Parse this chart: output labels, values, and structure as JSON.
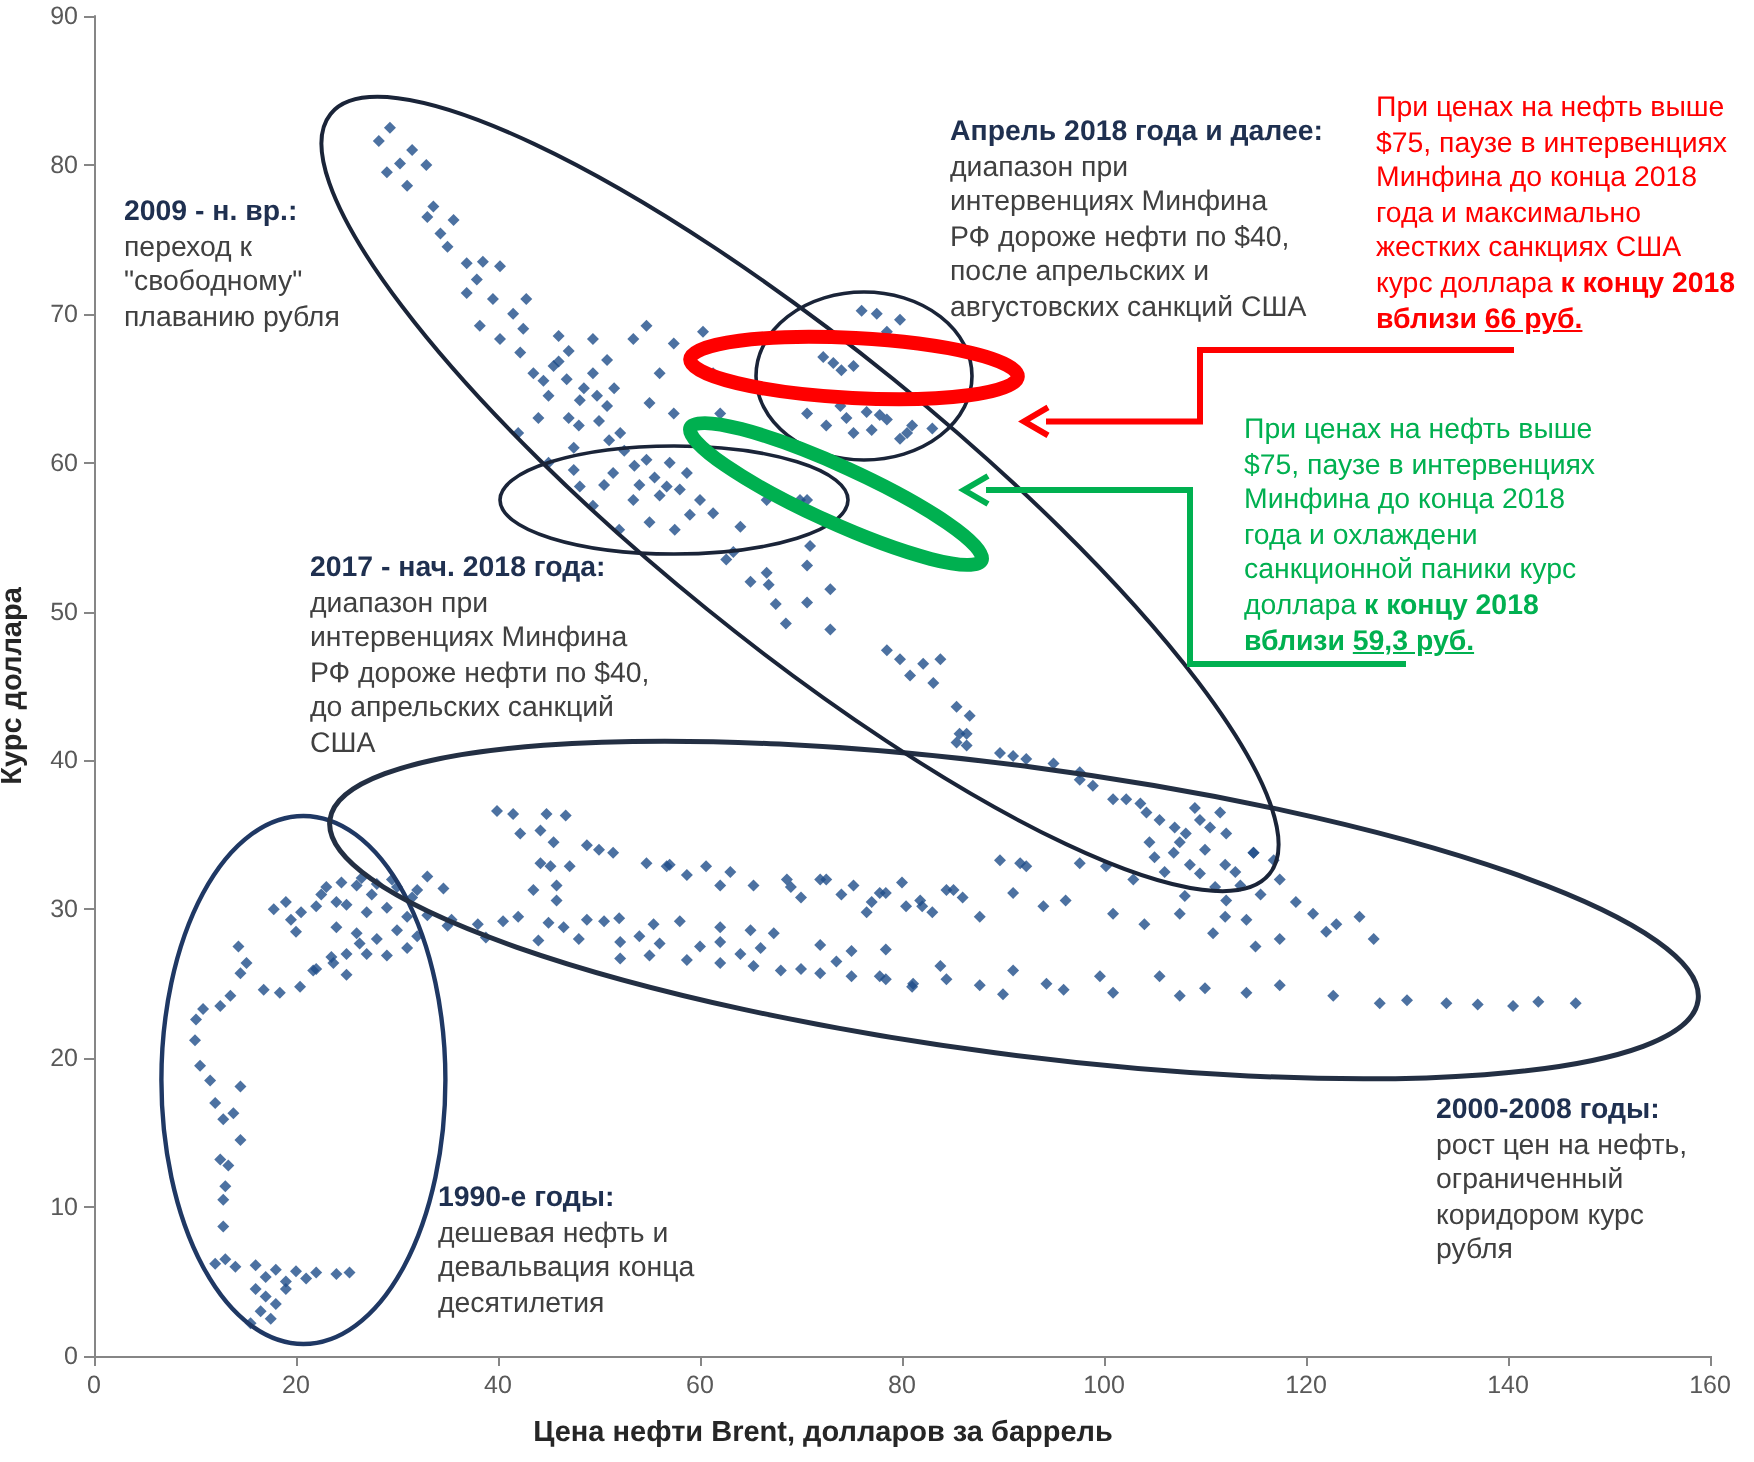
{
  "chart_data": {
    "type": "scatter",
    "xlabel": "Цена нефти Brent, долларов за баррель",
    "ylabel": "Курс доллара",
    "color": "#1f4e89",
    "marker": "diamond",
    "xlim": [
      0,
      160
    ],
    "xticks": [
      0,
      20,
      40,
      60,
      80,
      100,
      120,
      140,
      160
    ],
    "ylim": [
      0,
      90
    ],
    "yticks": [
      0,
      10,
      20,
      30,
      40,
      50,
      60,
      70,
      80,
      90
    ],
    "x": [
      12,
      14,
      16,
      18,
      20,
      22,
      24,
      25.3,
      13,
      17,
      19,
      21,
      16,
      17,
      18,
      16.5,
      17.5,
      15.5,
      19,
      12.8,
      12.8,
      13,
      13.3,
      12.5,
      12.8,
      13.8,
      14.5,
      11.5,
      10.5,
      10,
      10.1,
      10.8,
      12.5,
      13.5,
      14.5,
      15.1,
      16.8,
      18.4,
      20.4,
      21.7,
      23.7,
      25,
      26.3,
      14.3,
      14.5,
      12,
      17.8,
      19,
      20.5,
      22,
      23,
      24.5,
      26,
      28,
      30,
      32,
      34.6,
      25,
      27,
      29,
      31,
      33,
      24,
      26,
      28,
      30,
      32,
      35,
      22,
      23.5,
      25,
      27,
      29,
      31,
      22.5,
      26.5,
      33,
      20,
      39.9,
      41.5,
      44.8,
      46.7,
      44.2,
      42.2,
      45.5,
      45.2,
      44.2,
      45.8,
      43.5,
      45.8,
      47.1,
      48.8,
      51.4,
      54.7,
      56.7,
      58.7,
      60.6,
      62,
      65.3,
      68.6,
      72.5,
      75.2,
      78.4,
      81.8,
      85.1,
      70,
      74,
      77,
      80,
      83,
      35.4,
      38,
      42,
      45,
      48.8,
      52,
      55.4,
      58,
      62,
      65,
      67.3,
      38.8,
      44,
      48,
      52.1,
      56,
      62,
      66,
      71.9,
      75,
      78.4,
      52.1,
      55,
      58.7,
      62,
      65.3,
      68,
      71.9,
      75,
      78.4,
      81.1,
      84.4,
      85.7,
      86.4,
      91,
      95,
      97.6,
      98.9,
      100.9,
      103.6,
      108.1,
      106.9,
      109.5,
      111.5,
      105.5,
      113.5,
      114.8,
      116.8,
      117.4,
      107,
      110,
      112,
      104.5,
      109,
      111,
      106,
      100.2,
      102.9,
      112.1,
      108,
      107.5,
      114.1,
      120.7,
      125.3,
      126.7,
      117.4,
      110.8,
      122,
      104,
      77.8,
      84.4,
      91,
      96.2,
      100.9,
      89.7,
      92.3,
      97.6,
      80.4,
      87.7,
      94,
      77.8,
      83.8,
      87.7,
      94.3,
      100.9,
      105.5,
      107.5,
      114.1,
      117.4,
      122.7,
      127.3,
      133.9,
      140.5,
      146.7,
      99.6,
      91,
      81,
      90,
      96,
      110,
      130,
      137,
      143,
      70.6,
      70.9,
      70.6,
      72.9,
      72.9,
      78.5,
      79.8,
      82.1,
      83.8,
      80.8,
      83.1,
      85.4,
      86.7,
      86.4,
      85.4,
      89.7,
      92.3,
      97.6,
      102.2,
      104.2,
      109.5,
      112.1,
      114.8,
      71.9,
      91.7,
      29.3,
      28.2,
      30.3,
      29,
      31,
      32.9,
      33.6,
      34.3,
      35.6,
      36.9,
      37.9,
      36.9,
      40.2,
      39.5,
      42.8,
      38.2,
      40.2,
      42.2,
      46.8,
      49.4,
      48.1,
      45.5,
      50.8,
      49.4,
      50.8,
      43.5,
      47,
      45,
      48,
      51.5,
      44,
      47.5,
      46,
      52.1,
      54.7,
      51.4,
      56.7,
      53.4,
      48.1,
      49.4,
      58.7,
      60,
      61.3,
      64,
      66.6,
      69.9,
      63.3,
      66.6,
      70.6,
      55,
      57.5,
      57,
      62.6,
      65,
      52,
      45,
      42,
      53.4,
      54.7,
      56,
      57.4,
      60.3,
      61.3,
      62,
      57.4,
      55,
      77.5,
      79.8,
      78.5,
      72.2,
      73.2,
      75.2,
      73.9,
      76.5,
      78.5,
      79.8,
      72.5,
      75.2,
      70.6,
      81,
      83,
      77,
      47,
      48.5,
      46,
      49.8,
      50,
      51,
      52.5,
      53.5,
      55.5,
      56,
      58,
      59,
      50.5,
      54,
      47.5,
      44.5,
      42.5,
      41.5,
      38.5,
      35,
      33,
      31.5,
      67.5,
      68.5,
      66.8,
      74.5,
      77.8,
      80.5,
      76,
      74,
      40.5,
      46.5,
      50.5,
      54,
      60,
      64,
      70,
      73.5,
      82,
      86,
      76.5,
      69,
      63,
      57,
      50,
      27.5,
      29.5,
      31.5,
      24,
      19.5,
      107.5,
      110.5,
      108.5,
      105,
      113,
      115.5,
      119,
      123,
      115,
      112
    ],
    "values": [
      6.2,
      6.0,
      6.1,
      5.8,
      5.7,
      5.6,
      5.5,
      5.6,
      6.5,
      5.3,
      5.0,
      5.2,
      4.5,
      4.0,
      3.5,
      3.0,
      2.5,
      2.2,
      4.5,
      8.7,
      10.5,
      11.4,
      12.8,
      13.2,
      15.9,
      16.3,
      18.1,
      18.5,
      19.5,
      21.2,
      22.6,
      23.3,
      23.5,
      24.2,
      25.7,
      26.4,
      24.6,
      24.4,
      24.8,
      25.9,
      26.4,
      27,
      27.7,
      27.5,
      14.5,
      17,
      30.0,
      30.5,
      29.8,
      30.2,
      31.5,
      31.8,
      31.6,
      31.7,
      31.5,
      31.3,
      31.4,
      30.3,
      29.8,
      30.1,
      29.5,
      29.6,
      28.8,
      28.4,
      28.0,
      28.6,
      28.2,
      28.9,
      26,
      26.8,
      25.6,
      27.0,
      26.9,
      27.4,
      31,
      32.1,
      32.2,
      28.5,
      36.6,
      36.4,
      36.4,
      36.3,
      35.3,
      35.1,
      34.5,
      32.9,
      33.1,
      31.6,
      31.3,
      30.6,
      32.9,
      34.3,
      33.8,
      33.1,
      32.9,
      32.3,
      32.9,
      31.6,
      31.6,
      32,
      32,
      31.6,
      31.1,
      30.6,
      31.3,
      30.8,
      31,
      30.5,
      31.8,
      29.8,
      29.3,
      29,
      29.5,
      29.1,
      29.3,
      29.4,
      29.0,
      29.2,
      28.8,
      28.6,
      28.4,
      28.1,
      27.9,
      28.0,
      27.8,
      27.7,
      27.8,
      27.4,
      27.6,
      27.2,
      27.3,
      26.7,
      26.9,
      26.6,
      26.4,
      26.2,
      25.9,
      25.7,
      25.5,
      25.3,
      25.0,
      25.3,
      41.8,
      41,
      40.3,
      39.8,
      38.7,
      38.3,
      37.4,
      37.1,
      35.1,
      33.8,
      32.4,
      36.5,
      36,
      31.6,
      33.8,
      33.3,
      32.0,
      35.5,
      34,
      33,
      34.5,
      36.8,
      31.5,
      32.5,
      32.9,
      32,
      30.6,
      30.9,
      29.7,
      29.3,
      29.7,
      29.5,
      28,
      28,
      28.4,
      28.5,
      29,
      31.1,
      31.3,
      31.1,
      30.6,
      29.7,
      33.3,
      32.9,
      33.1,
      30.2,
      29.5,
      30.2,
      25.5,
      26.2,
      24.9,
      25,
      24.4,
      25.5,
      24.2,
      24.4,
      24.9,
      24.2,
      23.7,
      23.7,
      23.5,
      23.7,
      25.5,
      25.9,
      24.8,
      24.3,
      24.6,
      24.7,
      23.9,
      23.6,
      23.8,
      57.5,
      54.4,
      50.6,
      51.5,
      48.8,
      47.4,
      46.8,
      46.5,
      46.8,
      45.7,
      45.2,
      43.6,
      43,
      41.8,
      41.2,
      40.5,
      40.1,
      39.2,
      37.4,
      36.5,
      36,
      35.1,
      33.8,
      32,
      33.1,
      82.5,
      81.6,
      80.1,
      79.5,
      78.6,
      80,
      77.2,
      75.4,
      76.3,
      73.4,
      72.3,
      71.4,
      73.2,
      71,
      71,
      69.2,
      68.3,
      67.4,
      65.6,
      66,
      64.2,
      66.5,
      63.8,
      68.3,
      66.9,
      66,
      67.5,
      64.5,
      62.5,
      65,
      63,
      61,
      68.5,
      62,
      60.2,
      59.3,
      58.4,
      57.5,
      58.4,
      57.1,
      59.3,
      57.5,
      56.6,
      55.7,
      57.5,
      57.5,
      54,
      52.6,
      53.1,
      56,
      55.5,
      60,
      53.5,
      52,
      55.5,
      60,
      62,
      68.3,
      69.2,
      66,
      68,
      68.8,
      66,
      63.3,
      63.3,
      64,
      70,
      69.6,
      68.8,
      67.1,
      66.7,
      66.5,
      63.8,
      63.4,
      62.9,
      61.6,
      62.5,
      62,
      63.3,
      62.5,
      62.3,
      62.2,
      63,
      65,
      66.8,
      64.5,
      62.8,
      61.5,
      60.8,
      59.8,
      59,
      57.8,
      58.2,
      56.5,
      58.5,
      58.5,
      59.5,
      65.5,
      69,
      70,
      73.5,
      74.5,
      76.5,
      81,
      50.5,
      49.2,
      51.8,
      63,
      63.2,
      62,
      70.2,
      66.2,
      29.2,
      28.8,
      29.2,
      28.2,
      27.5,
      27,
      26,
      26.5,
      30.2,
      30.8,
      29.8,
      31.5,
      32.5,
      33,
      34,
      31,
      32,
      30.8,
      30.5,
      29.3,
      34.5,
      35.5,
      33,
      33.5,
      32.5,
      31,
      30.5,
      29,
      27.5,
      29.5
    ],
    "annotations": [
      "2009 - н. вр.:",
      "переход к",
      "\"свободному\"",
      "плаванию рубля",
      "Апрель 2018 года и далее:",
      "диапазон при",
      "интервенциях Минфина",
      "РФ дороже нефти по $40,",
      "после апрельских и",
      "августовских санкций США",
      "При ценах на нефть выше",
      "$75, паузе в интервенциях",
      "Минфина до конца 2018",
      "года и максимально",
      "жестких санкциях США",
      "курс доллара",
      "к концу 2018",
      "вблизи",
      "66 руб.",
      "При ценах на нефть выше",
      "$75, паузе в интервенциях",
      "Минфина до конца 2018",
      "года и охлаждени",
      "санкционной паники курс",
      "доллара",
      "к концу 2018",
      "вблизи",
      "59,3 руб.",
      "2017 - нач. 2018 года:",
      "диапазон при",
      "интервенциях Минфина",
      "РФ дороже нефти по $40,",
      "до апрельских санкций",
      "США",
      "2000-2008 годы:",
      "рост цен на нефть,",
      "ограниченный",
      "коридором курс",
      "рубля",
      "1990-е годы:",
      "дешевая нефть и",
      "девальвация конца",
      "десятилетия"
    ]
  }
}
